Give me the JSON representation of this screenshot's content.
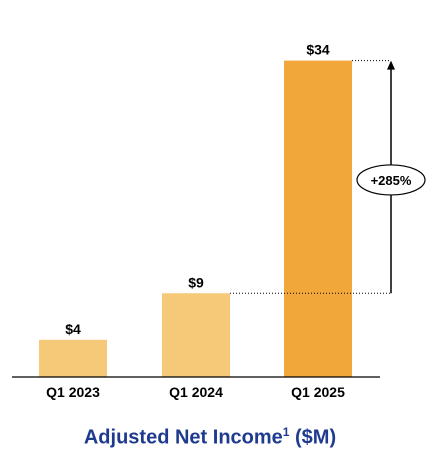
{
  "chart_data": {
    "type": "bar",
    "title_main": "Adjusted Net Income",
    "title_sup": "1",
    "title_suffix": " ($M)",
    "categories": [
      "Q1 2023",
      "Q1 2024",
      "Q1 2025"
    ],
    "values": [
      4,
      9,
      34
    ],
    "value_labels": [
      "$4",
      "$9",
      "$34"
    ],
    "colors": [
      "#f6c978",
      "#f6c978",
      "#f2a73b"
    ],
    "ylim": [
      0,
      36
    ],
    "annotation": {
      "label": "+285%",
      "from_value": 9,
      "to_value": 34
    }
  }
}
